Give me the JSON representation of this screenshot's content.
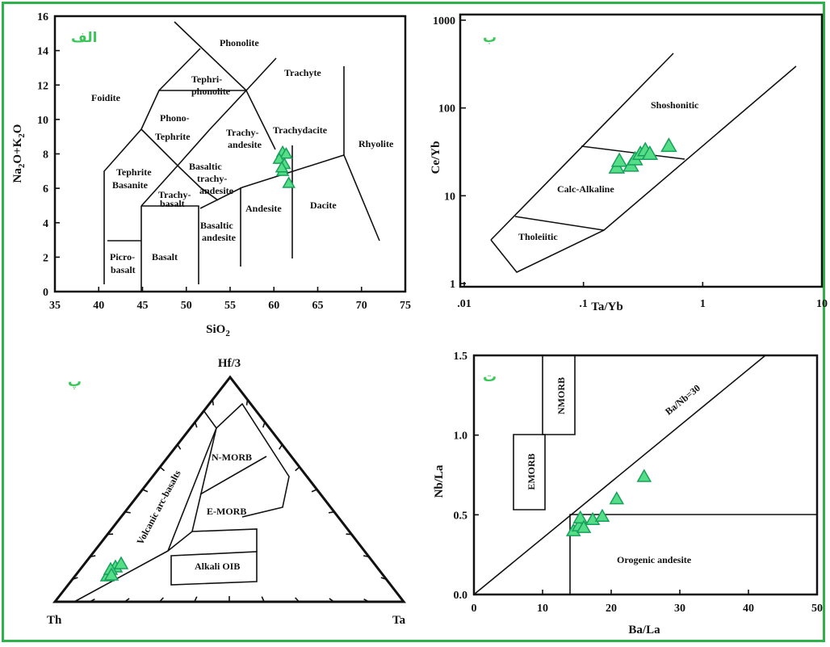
{
  "colors": {
    "border": "#2fb24a",
    "sample_fill": "#55dd88",
    "sample_stroke": "#17a05a",
    "panel_letter": "#3cc65a"
  },
  "tas": {
    "letter": "الف",
    "x_label": "SiO2",
    "y_label": "Na2O+K2O",
    "x_ticks": [
      "35",
      "40",
      "45",
      "50",
      "55",
      "60",
      "65",
      "70",
      "75"
    ],
    "y_ticks": [
      "0",
      "2",
      "4",
      "6",
      "8",
      "10",
      "12",
      "14",
      "16"
    ],
    "fields": {
      "phonolite": "Phonolite",
      "trachyte": "Trachyte",
      "tephri": "Tephri-",
      "phonolite2": "phonolite",
      "foidite": "Foidite",
      "phono": "Phono-",
      "tephrite": "Tephrite",
      "trachy": "Trachy-",
      "andesite_t": "andesite",
      "trachydacite": "Trachydacite",
      "rhyolite": "Rhyolite",
      "tephrite2": "Tephrite",
      "basanite": "Basanite",
      "basaltic": "Basaltic",
      "trachy2": "trachy-",
      "andesite_b": "andesite",
      "trachy3": "Trachy-",
      "basalt_t": "basalt",
      "andesite": "Andesite",
      "dacite": "Dacite",
      "basaltic2": "Basaltic",
      "andesite2": "andesite",
      "picro": "Picro-",
      "basalt_p": "basalt",
      "basalt": "Basalt"
    },
    "samples": [
      [
        61.0,
        8.1
      ],
      [
        61.4,
        8.0
      ],
      [
        60.6,
        7.7
      ],
      [
        61.2,
        7.4
      ],
      [
        61.0,
        7.0
      ],
      [
        61.7,
        6.3
      ],
      [
        60.9,
        7.2
      ]
    ]
  },
  "cy": {
    "letter": "ب",
    "x_label": "Ta/Yb",
    "y_label": "Ce/Yb",
    "x_ticks": [
      ".01",
      ".1",
      "1",
      "10"
    ],
    "y_ticks": [
      "1",
      "10",
      "100",
      "1000"
    ],
    "fields": {
      "shoshonitic": "Shoshonitic",
      "calc": "Calc-Alkaline",
      "thol": "Tholeiitic"
    },
    "samples": [
      [
        0.19,
        21
      ],
      [
        0.2,
        25
      ],
      [
        0.25,
        22
      ],
      [
        0.27,
        26
      ],
      [
        0.3,
        30
      ],
      [
        0.33,
        33
      ],
      [
        0.36,
        30
      ],
      [
        0.52,
        37
      ]
    ]
  },
  "ternary": {
    "letter": "پ",
    "apex_top": "Hf/3",
    "apex_left": "Th",
    "apex_right": "Ta",
    "fields": {
      "nmorb": "N-MORB",
      "emorb": "E-MORB",
      "oib": "Alkali OIB",
      "arc": "Volcanic arc-basalts"
    },
    "samples": [
      [
        133,
        713
      ],
      [
        143,
        702
      ],
      [
        150,
        698
      ],
      [
        137,
        705
      ],
      [
        138,
        712
      ]
    ]
  },
  "bala": {
    "letter": "ت",
    "x_label": "Ba/La",
    "y_label": "Nb/La",
    "x_ticks": [
      "0",
      "10",
      "20",
      "30",
      "40",
      "50"
    ],
    "y_ticks": [
      "0.0",
      "0.5",
      "1.0",
      "1.5"
    ],
    "fields": {
      "nmorb": "NMORB",
      "emorb": "EMORB",
      "line": "Ba/Nb=30",
      "orogenic": "Orogenic andesite"
    },
    "samples": [
      [
        14.5,
        0.4
      ],
      [
        15.3,
        0.43
      ],
      [
        15.5,
        0.48
      ],
      [
        16.0,
        0.42
      ],
      [
        17.3,
        0.47
      ],
      [
        18.7,
        0.49
      ],
      [
        20.8,
        0.6
      ],
      [
        24.8,
        0.74
      ]
    ]
  }
}
